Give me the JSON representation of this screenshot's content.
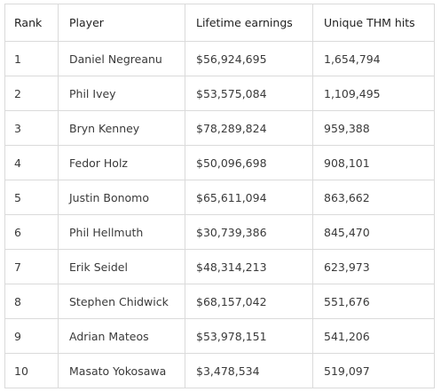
{
  "table": {
    "headers": [
      "Rank",
      "Player",
      "Lifetime earnings",
      "Unique THM hits"
    ],
    "rows": [
      [
        "1",
        "Daniel Negreanu",
        "$56,924,695",
        "1,654,794"
      ],
      [
        "2",
        "Phil Ivey",
        "$53,575,084",
        "1,109,495"
      ],
      [
        "3",
        "Bryn Kenney",
        "$78,289,824",
        "959,388"
      ],
      [
        "4",
        "Fedor Holz",
        "$50,096,698",
        "908,101"
      ],
      [
        "5",
        "Justin Bonomo",
        "$65,611,094",
        "863,662"
      ],
      [
        "6",
        "Phil Hellmuth",
        "$30,739,386",
        "845,470"
      ],
      [
        "7",
        "Erik Seidel",
        "$48,314,213",
        "623,973"
      ],
      [
        "8",
        "Stephen Chidwick",
        "$68,157,042",
        "551,676"
      ],
      [
        "9",
        "Adrian Mateos",
        "$53,978,151",
        "541,206"
      ],
      [
        "10",
        "Masato Yokosawa",
        "$3,478,534",
        "519,097"
      ]
    ]
  }
}
